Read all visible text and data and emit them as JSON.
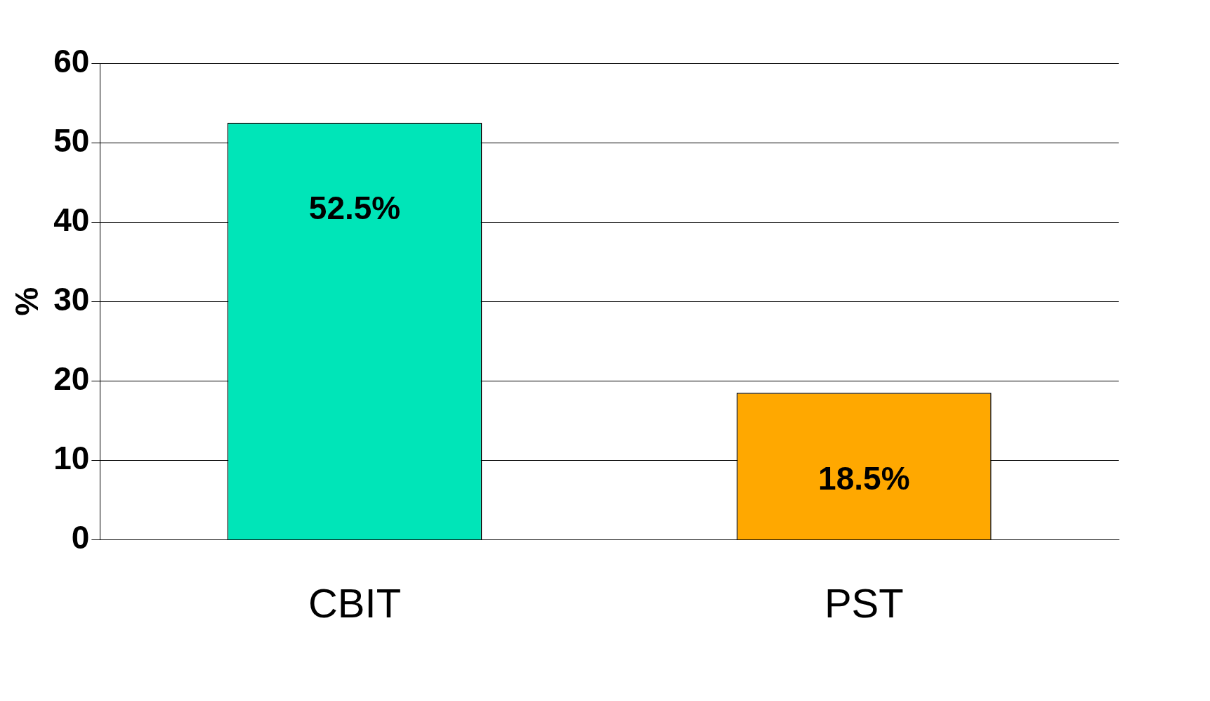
{
  "chart_data": {
    "type": "bar",
    "ylabel": "%",
    "categories": [
      "CBIT",
      "PST"
    ],
    "colors": [
      "#00e5b8",
      "#ffa800"
    ],
    "values": [
      52.5,
      18.5
    ],
    "value_labels": [
      "52.5%",
      "18.5%"
    ],
    "ylim": [
      0,
      60
    ],
    "yticks": [
      0,
      10,
      20,
      30,
      40,
      50,
      60
    ],
    "grid": "y"
  }
}
